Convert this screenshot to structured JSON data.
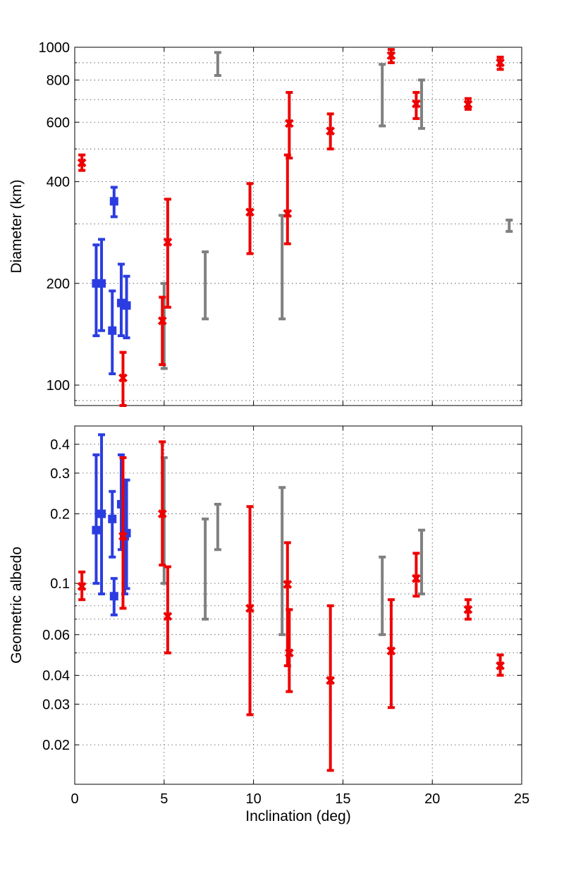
{
  "chart_data": [
    {
      "type": "scatter",
      "xlabel": "",
      "ylabel": "Diameter (km)",
      "xlim": [
        0,
        25
      ],
      "ylim": [
        87,
        1000
      ],
      "yscale": "log",
      "grid": true,
      "x_ticks": [
        0,
        5,
        10,
        15,
        20,
        25
      ],
      "y_ticks": [
        100,
        200,
        400,
        600,
        800,
        1000
      ],
      "y_tick_labels": [
        "100",
        "200",
        "400",
        "600",
        "800",
        "1000"
      ],
      "series": [
        {
          "color": "#2b3de0",
          "marker": "square",
          "points": [
            {
              "x": 1.2,
              "y": 200,
              "lo": 140,
              "hi": 260
            },
            {
              "x": 1.5,
              "y": 200,
              "lo": 145,
              "hi": 270
            },
            {
              "x": 2.1,
              "y": 145,
              "lo": 108,
              "hi": 190
            },
            {
              "x": 2.2,
              "y": 350,
              "lo": 315,
              "hi": 385
            },
            {
              "x": 2.6,
              "y": 175,
              "lo": 140,
              "hi": 228
            },
            {
              "x": 2.9,
              "y": 172,
              "lo": 138,
              "hi": 210
            }
          ]
        },
        {
          "color": "#ee0000",
          "marker": "x",
          "points": [
            {
              "x": 0.4,
              "y": 455,
              "lo": 432,
              "hi": 480
            },
            {
              "x": 2.7,
              "y": 105,
              "lo": 87,
              "hi": 125
            },
            {
              "x": 4.9,
              "y": 155,
              "lo": 115,
              "hi": 182
            },
            {
              "x": 5.2,
              "y": 265,
              "lo": 170,
              "hi": 355
            },
            {
              "x": 9.8,
              "y": 325,
              "lo": 245,
              "hi": 395
            },
            {
              "x": 11.9,
              "y": 322,
              "lo": 262,
              "hi": 480
            },
            {
              "x": 12.0,
              "y": 595,
              "lo": 470,
              "hi": 735
            },
            {
              "x": 14.3,
              "y": 565,
              "lo": 500,
              "hi": 635
            },
            {
              "x": 17.7,
              "y": 945,
              "lo": 900,
              "hi": 985
            },
            {
              "x": 19.1,
              "y": 680,
              "lo": 615,
              "hi": 735
            },
            {
              "x": 22.0,
              "y": 678,
              "lo": 655,
              "hi": 705
            },
            {
              "x": 23.8,
              "y": 900,
              "lo": 860,
              "hi": 935
            }
          ]
        },
        {
          "color": "#808080",
          "marker": "none",
          "points": [
            {
              "x": 5.0,
              "lo": 112,
              "hi": 200
            },
            {
              "x": 7.3,
              "lo": 157,
              "hi": 248
            },
            {
              "x": 8.0,
              "lo": 825,
              "hi": 965
            },
            {
              "x": 11.6,
              "lo": 157,
              "hi": 318
            },
            {
              "x": 17.2,
              "lo": 585,
              "hi": 890
            },
            {
              "x": 19.4,
              "lo": 575,
              "hi": 800
            },
            {
              "x": 24.3,
              "lo": 285,
              "hi": 308
            }
          ]
        }
      ]
    },
    {
      "type": "scatter",
      "xlabel": "Inclination (deg)",
      "ylabel": "Geometric albedo",
      "xlim": [
        0,
        25
      ],
      "ylim": [
        0.0135,
        0.48
      ],
      "yscale": "log",
      "grid": true,
      "x_ticks": [
        0,
        5,
        10,
        15,
        20,
        25
      ],
      "x_tick_labels": [
        "0",
        "5",
        "10",
        "15",
        "20",
        "25"
      ],
      "y_ticks": [
        0.02,
        0.03,
        0.04,
        0.06,
        0.1,
        0.2,
        0.3,
        0.4
      ],
      "y_tick_labels": [
        "0.02",
        "0.03",
        "0.04",
        "0.06",
        "0.1",
        "0.2",
        "0.3",
        "0.4"
      ],
      "series": [
        {
          "color": "#2b3de0",
          "marker": "square",
          "points": [
            {
              "x": 1.2,
              "y": 0.17,
              "lo": 0.1,
              "hi": 0.36
            },
            {
              "x": 1.5,
              "y": 0.2,
              "lo": 0.09,
              "hi": 0.44
            },
            {
              "x": 2.1,
              "y": 0.19,
              "lo": 0.13,
              "hi": 0.25
            },
            {
              "x": 2.2,
              "y": 0.088,
              "lo": 0.073,
              "hi": 0.105
            },
            {
              "x": 2.6,
              "y": 0.22,
              "lo": 0.14,
              "hi": 0.36
            },
            {
              "x": 2.8,
              "y": 0.16,
              "lo": 0.09,
              "hi": 0.28
            },
            {
              "x": 2.9,
              "y": 0.165,
              "lo": 0.095,
              "hi": 0.28
            }
          ]
        },
        {
          "color": "#ee0000",
          "marker": "x",
          "points": [
            {
              "x": 0.4,
              "y": 0.097,
              "lo": 0.085,
              "hi": 0.112
            },
            {
              "x": 2.7,
              "y": 0.16,
              "lo": 0.078,
              "hi": 0.35
            },
            {
              "x": 4.9,
              "y": 0.2,
              "lo": 0.12,
              "hi": 0.41
            },
            {
              "x": 5.2,
              "y": 0.072,
              "lo": 0.05,
              "hi": 0.118
            },
            {
              "x": 9.8,
              "y": 0.078,
              "lo": 0.027,
              "hi": 0.215
            },
            {
              "x": 11.9,
              "y": 0.099,
              "lo": 0.044,
              "hi": 0.15
            },
            {
              "x": 12.0,
              "y": 0.05,
              "lo": 0.034,
              "hi": 0.077
            },
            {
              "x": 14.3,
              "y": 0.038,
              "lo": 0.0155,
              "hi": 0.08
            },
            {
              "x": 17.7,
              "y": 0.051,
              "lo": 0.029,
              "hi": 0.085
            },
            {
              "x": 19.1,
              "y": 0.105,
              "lo": 0.088,
              "hi": 0.135
            },
            {
              "x": 22.0,
              "y": 0.077,
              "lo": 0.07,
              "hi": 0.085
            },
            {
              "x": 23.8,
              "y": 0.044,
              "lo": 0.04,
              "hi": 0.049
            }
          ]
        },
        {
          "color": "#808080",
          "marker": "none",
          "points": [
            {
              "x": 5.0,
              "lo": 0.1,
              "hi": 0.35
            },
            {
              "x": 7.3,
              "lo": 0.07,
              "hi": 0.19
            },
            {
              "x": 8.0,
              "lo": 0.14,
              "hi": 0.22
            },
            {
              "x": 11.6,
              "lo": 0.06,
              "hi": 0.26
            },
            {
              "x": 17.2,
              "lo": 0.06,
              "hi": 0.13
            },
            {
              "x": 19.4,
              "lo": 0.09,
              "hi": 0.17
            }
          ]
        }
      ]
    }
  ]
}
